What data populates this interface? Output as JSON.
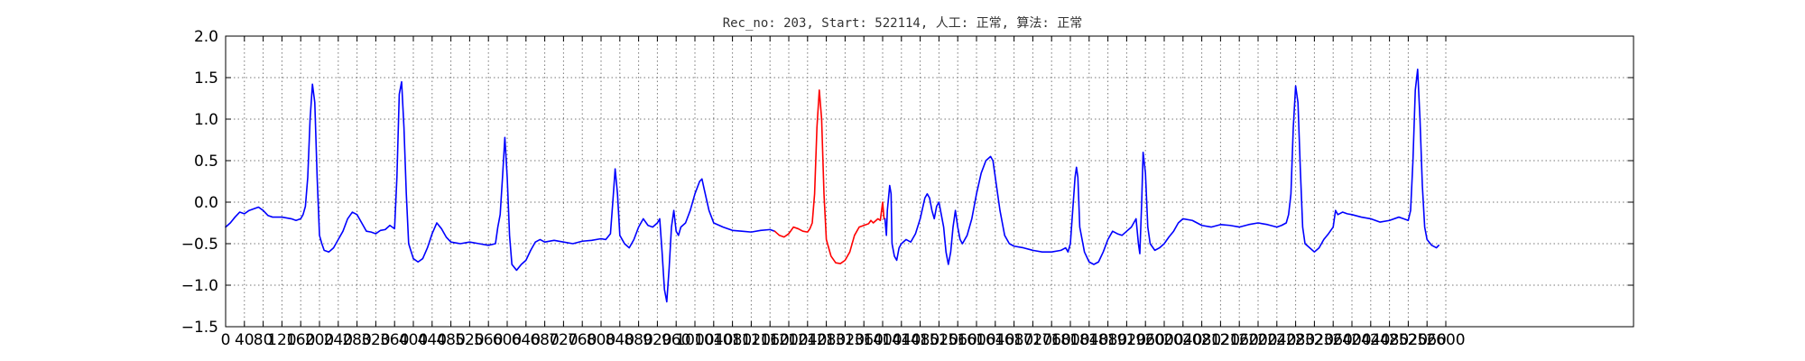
{
  "chart_data": {
    "type": "line",
    "title": "Rec_no: 203, Start: 522114, 人工: 正常, 算法: 正常",
    "xlabel": "",
    "ylabel": "",
    "xlim": [
      0,
      3000
    ],
    "ylim": [
      -1.5,
      2.0
    ],
    "grid": true,
    "yticks": [
      -1.5,
      -1.0,
      -0.5,
      0.0,
      0.5,
      1.0,
      1.5,
      2.0
    ],
    "ytick_labels": [
      "−1.5",
      "−1.0",
      "−0.5",
      "0.0",
      "0.5",
      "1.0",
      "1.5",
      "2.0"
    ],
    "xticks": [
      0,
      40,
      80,
      120,
      160,
      200,
      240,
      280,
      320,
      360,
      400,
      440,
      480,
      520,
      560,
      600,
      640,
      680,
      720,
      760,
      800,
      840,
      880,
      920,
      960,
      1000,
      1040,
      1080,
      1120,
      1160,
      1200,
      1240,
      1280,
      1320,
      1360,
      1400,
      1440,
      1480,
      1520,
      1560,
      1600,
      1640,
      1680,
      1720,
      1760,
      1800,
      1840,
      1880,
      1920,
      1960,
      2000,
      2040,
      2080,
      2120,
      2160,
      2200,
      2240,
      2280,
      2320,
      2360,
      2400,
      2440,
      2480,
      2520,
      2560,
      2600
    ],
    "series": [
      {
        "color": "#0000ff",
        "points": [
          [
            0,
            -0.3
          ],
          [
            10,
            -0.25
          ],
          [
            20,
            -0.18
          ],
          [
            30,
            -0.12
          ],
          [
            40,
            -0.14
          ],
          [
            50,
            -0.1
          ],
          [
            60,
            -0.08
          ],
          [
            70,
            -0.06
          ],
          [
            80,
            -0.1
          ],
          [
            90,
            -0.16
          ],
          [
            100,
            -0.18
          ],
          [
            120,
            -0.18
          ],
          [
            140,
            -0.2
          ],
          [
            150,
            -0.22
          ],
          [
            160,
            -0.2
          ],
          [
            165,
            -0.15
          ],
          [
            170,
            -0.05
          ],
          [
            175,
            0.3
          ],
          [
            180,
            1.0
          ],
          [
            185,
            1.42
          ],
          [
            190,
            1.2
          ],
          [
            195,
            0.3
          ],
          [
            200,
            -0.4
          ],
          [
            205,
            -0.5
          ],
          [
            210,
            -0.58
          ],
          [
            220,
            -0.6
          ],
          [
            230,
            -0.55
          ],
          [
            240,
            -0.45
          ],
          [
            250,
            -0.35
          ],
          [
            260,
            -0.2
          ],
          [
            270,
            -0.12
          ],
          [
            280,
            -0.15
          ],
          [
            290,
            -0.25
          ],
          [
            300,
            -0.35
          ],
          [
            310,
            -0.36
          ],
          [
            320,
            -0.38
          ],
          [
            330,
            -0.34
          ],
          [
            340,
            -0.33
          ],
          [
            350,
            -0.28
          ],
          [
            355,
            -0.3
          ],
          [
            360,
            -0.32
          ],
          [
            365,
            0.3
          ],
          [
            370,
            1.3
          ],
          [
            375,
            1.45
          ],
          [
            380,
            0.9
          ],
          [
            385,
            0.1
          ],
          [
            390,
            -0.5
          ],
          [
            400,
            -0.68
          ],
          [
            410,
            -0.72
          ],
          [
            420,
            -0.68
          ],
          [
            430,
            -0.55
          ],
          [
            440,
            -0.38
          ],
          [
            450,
            -0.25
          ],
          [
            460,
            -0.32
          ],
          [
            470,
            -0.42
          ],
          [
            480,
            -0.48
          ],
          [
            500,
            -0.5
          ],
          [
            520,
            -0.48
          ],
          [
            540,
            -0.5
          ],
          [
            560,
            -0.52
          ],
          [
            575,
            -0.5
          ],
          [
            580,
            -0.3
          ],
          [
            585,
            -0.15
          ],
          [
            590,
            0.3
          ],
          [
            595,
            0.78
          ],
          [
            600,
            0.3
          ],
          [
            605,
            -0.4
          ],
          [
            610,
            -0.75
          ],
          [
            620,
            -0.82
          ],
          [
            630,
            -0.75
          ],
          [
            640,
            -0.7
          ],
          [
            650,
            -0.58
          ],
          [
            660,
            -0.48
          ],
          [
            670,
            -0.45
          ],
          [
            680,
            -0.48
          ],
          [
            700,
            -0.46
          ],
          [
            720,
            -0.48
          ],
          [
            740,
            -0.5
          ],
          [
            760,
            -0.47
          ],
          [
            780,
            -0.46
          ],
          [
            800,
            -0.44
          ],
          [
            810,
            -0.45
          ],
          [
            820,
            -0.38
          ],
          [
            825,
            0.0
          ],
          [
            830,
            0.4
          ],
          [
            835,
            0.1
          ],
          [
            840,
            -0.4
          ],
          [
            850,
            -0.5
          ],
          [
            860,
            -0.55
          ],
          [
            870,
            -0.45
          ],
          [
            880,
            -0.3
          ],
          [
            890,
            -0.2
          ],
          [
            900,
            -0.28
          ],
          [
            910,
            -0.3
          ],
          [
            920,
            -0.25
          ],
          [
            925,
            -0.2
          ],
          [
            930,
            -0.6
          ],
          [
            935,
            -1.05
          ],
          [
            940,
            -1.2
          ],
          [
            945,
            -0.8
          ],
          [
            950,
            -0.3
          ],
          [
            955,
            -0.1
          ],
          [
            960,
            -0.35
          ],
          [
            965,
            -0.4
          ],
          [
            970,
            -0.3
          ],
          [
            980,
            -0.25
          ],
          [
            990,
            -0.1
          ],
          [
            1000,
            0.1
          ],
          [
            1010,
            0.25
          ],
          [
            1015,
            0.28
          ],
          [
            1020,
            0.15
          ],
          [
            1030,
            -0.1
          ],
          [
            1040,
            -0.25
          ],
          [
            1060,
            -0.3
          ],
          [
            1080,
            -0.34
          ],
          [
            1100,
            -0.35
          ],
          [
            1120,
            -0.36
          ],
          [
            1140,
            -0.34
          ],
          [
            1160,
            -0.33
          ],
          [
            1170,
            -0.35
          ]
        ]
      },
      {
        "color": "#ff0000",
        "points": [
          [
            1170,
            -0.35
          ],
          [
            1180,
            -0.4
          ],
          [
            1190,
            -0.42
          ],
          [
            1200,
            -0.38
          ],
          [
            1210,
            -0.3
          ],
          [
            1220,
            -0.32
          ],
          [
            1230,
            -0.35
          ],
          [
            1240,
            -0.36
          ],
          [
            1245,
            -0.32
          ],
          [
            1250,
            -0.25
          ],
          [
            1255,
            0.1
          ],
          [
            1260,
            0.9
          ],
          [
            1265,
            1.35
          ],
          [
            1270,
            1.0
          ],
          [
            1275,
            0.1
          ],
          [
            1280,
            -0.45
          ],
          [
            1290,
            -0.65
          ],
          [
            1300,
            -0.73
          ],
          [
            1310,
            -0.74
          ],
          [
            1320,
            -0.7
          ],
          [
            1330,
            -0.6
          ],
          [
            1340,
            -0.4
          ],
          [
            1350,
            -0.3
          ],
          [
            1360,
            -0.28
          ],
          [
            1370,
            -0.26
          ],
          [
            1375,
            -0.22
          ],
          [
            1380,
            -0.25
          ],
          [
            1390,
            -0.2
          ],
          [
            1395,
            -0.22
          ],
          [
            1400,
            0.0
          ],
          [
            1403,
            -0.2
          ],
          [
            1405,
            -0.2
          ]
        ]
      },
      {
        "color": "#0000ff",
        "points": [
          [
            1405,
            -0.2
          ],
          [
            1408,
            -0.4
          ],
          [
            1410,
            -0.1
          ],
          [
            1415,
            0.2
          ],
          [
            1418,
            0.1
          ],
          [
            1420,
            -0.5
          ],
          [
            1425,
            -0.65
          ],
          [
            1430,
            -0.7
          ],
          [
            1435,
            -0.55
          ],
          [
            1440,
            -0.5
          ],
          [
            1450,
            -0.45
          ],
          [
            1460,
            -0.48
          ],
          [
            1470,
            -0.38
          ],
          [
            1480,
            -0.2
          ],
          [
            1490,
            0.05
          ],
          [
            1495,
            0.1
          ],
          [
            1500,
            0.05
          ],
          [
            1505,
            -0.1
          ],
          [
            1510,
            -0.2
          ],
          [
            1515,
            -0.05
          ],
          [
            1520,
            0.0
          ],
          [
            1525,
            -0.15
          ],
          [
            1530,
            -0.3
          ],
          [
            1535,
            -0.6
          ],
          [
            1540,
            -0.75
          ],
          [
            1545,
            -0.6
          ],
          [
            1550,
            -0.3
          ],
          [
            1555,
            -0.1
          ],
          [
            1560,
            -0.3
          ],
          [
            1565,
            -0.45
          ],
          [
            1570,
            -0.5
          ],
          [
            1580,
            -0.4
          ],
          [
            1590,
            -0.2
          ],
          [
            1600,
            0.1
          ],
          [
            1610,
            0.35
          ],
          [
            1620,
            0.5
          ],
          [
            1630,
            0.55
          ],
          [
            1635,
            0.5
          ],
          [
            1640,
            0.3
          ],
          [
            1650,
            -0.1
          ],
          [
            1660,
            -0.4
          ],
          [
            1670,
            -0.5
          ],
          [
            1680,
            -0.53
          ],
          [
            1700,
            -0.55
          ],
          [
            1720,
            -0.58
          ],
          [
            1740,
            -0.6
          ],
          [
            1760,
            -0.6
          ],
          [
            1780,
            -0.58
          ],
          [
            1790,
            -0.55
          ],
          [
            1795,
            -0.6
          ],
          [
            1800,
            -0.5
          ],
          [
            1805,
            -0.1
          ],
          [
            1810,
            0.3
          ],
          [
            1813,
            0.42
          ],
          [
            1816,
            0.3
          ],
          [
            1820,
            -0.3
          ],
          [
            1830,
            -0.6
          ],
          [
            1840,
            -0.72
          ],
          [
            1850,
            -0.75
          ],
          [
            1860,
            -0.72
          ],
          [
            1870,
            -0.6
          ],
          [
            1880,
            -0.45
          ],
          [
            1890,
            -0.35
          ],
          [
            1900,
            -0.38
          ],
          [
            1910,
            -0.4
          ],
          [
            1920,
            -0.35
          ],
          [
            1930,
            -0.3
          ],
          [
            1940,
            -0.2
          ],
          [
            1945,
            -0.5
          ],
          [
            1948,
            -0.62
          ],
          [
            1952,
            0.0
          ],
          [
            1955,
            0.6
          ],
          [
            1960,
            0.35
          ],
          [
            1965,
            -0.3
          ],
          [
            1970,
            -0.5
          ],
          [
            1980,
            -0.58
          ],
          [
            1990,
            -0.55
          ],
          [
            2000,
            -0.5
          ],
          [
            2010,
            -0.42
          ],
          [
            2020,
            -0.35
          ],
          [
            2030,
            -0.25
          ],
          [
            2040,
            -0.2
          ],
          [
            2060,
            -0.22
          ],
          [
            2080,
            -0.28
          ],
          [
            2100,
            -0.3
          ],
          [
            2120,
            -0.27
          ],
          [
            2140,
            -0.28
          ],
          [
            2160,
            -0.3
          ],
          [
            2180,
            -0.27
          ],
          [
            2200,
            -0.25
          ],
          [
            2220,
            -0.27
          ],
          [
            2240,
            -0.3
          ],
          [
            2250,
            -0.28
          ],
          [
            2260,
            -0.25
          ],
          [
            2265,
            -0.15
          ],
          [
            2270,
            0.1
          ],
          [
            2275,
            0.9
          ],
          [
            2280,
            1.4
          ],
          [
            2285,
            1.2
          ],
          [
            2290,
            0.4
          ],
          [
            2295,
            -0.3
          ],
          [
            2300,
            -0.5
          ],
          [
            2310,
            -0.55
          ],
          [
            2320,
            -0.6
          ],
          [
            2330,
            -0.55
          ],
          [
            2340,
            -0.45
          ],
          [
            2350,
            -0.38
          ],
          [
            2360,
            -0.3
          ],
          [
            2365,
            -0.1
          ],
          [
            2370,
            -0.15
          ],
          [
            2380,
            -0.12
          ],
          [
            2390,
            -0.14
          ],
          [
            2400,
            -0.15
          ],
          [
            2420,
            -0.18
          ],
          [
            2440,
            -0.2
          ],
          [
            2460,
            -0.24
          ],
          [
            2480,
            -0.22
          ],
          [
            2500,
            -0.18
          ],
          [
            2510,
            -0.2
          ],
          [
            2520,
            -0.22
          ],
          [
            2525,
            -0.1
          ],
          [
            2530,
            0.5
          ],
          [
            2535,
            1.35
          ],
          [
            2540,
            1.6
          ],
          [
            2545,
            1.0
          ],
          [
            2550,
            0.2
          ],
          [
            2555,
            -0.3
          ],
          [
            2560,
            -0.45
          ],
          [
            2570,
            -0.52
          ],
          [
            2580,
            -0.55
          ],
          [
            2585,
            -0.52
          ]
        ]
      }
    ]
  }
}
